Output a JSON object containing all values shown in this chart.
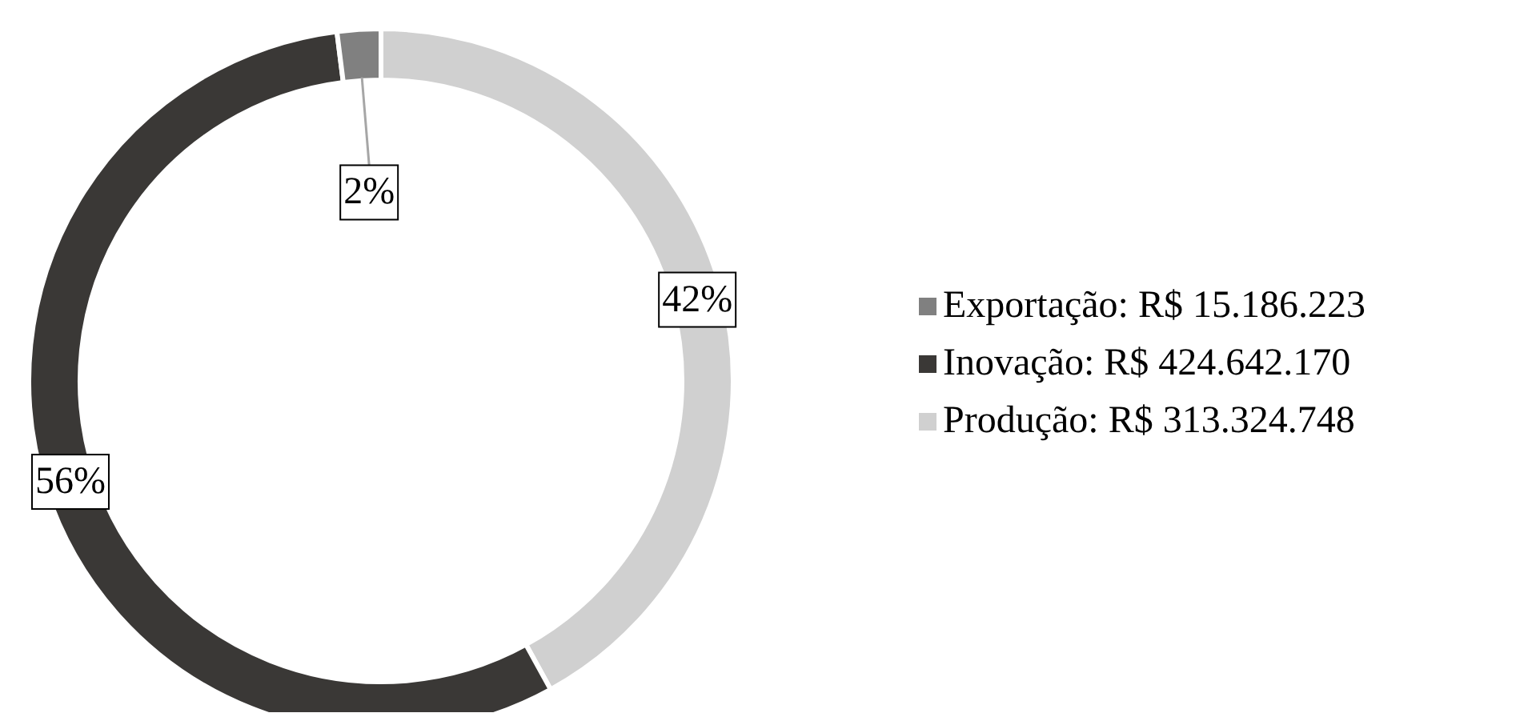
{
  "chart_data": {
    "type": "donut",
    "categories": [
      "Produção: R$ 313.324.748",
      "Inovação: R$ 424.642.170",
      "Exportação: R$ 15.186.223"
    ],
    "values": [
      42,
      56,
      2
    ],
    "value_labels": [
      "42%",
      "56%",
      "2%"
    ],
    "colors": [
      "#d0d0d0",
      "#3a3836",
      "#808080"
    ],
    "legend": "right"
  }
}
